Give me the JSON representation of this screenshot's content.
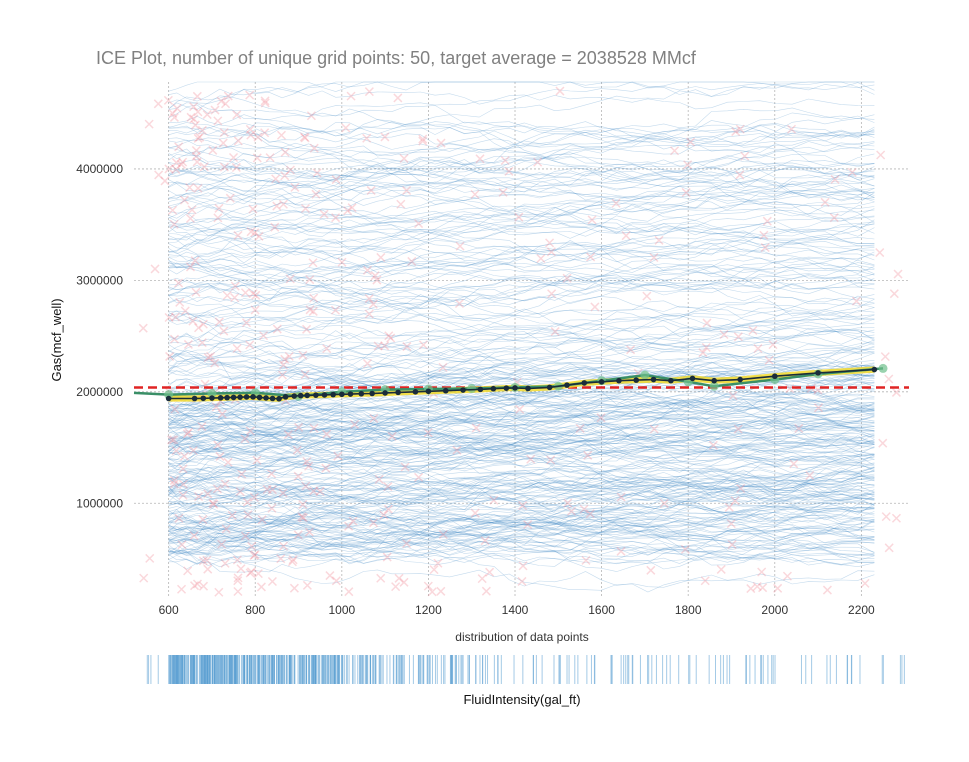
{
  "chart_data": {
    "type": "line",
    "title": "ICE Plot, number of unique grid points: 50, target average = 2038528 MMcf",
    "xlabel": "distribution of data points",
    "ylabel": "Gas(mcf_well)",
    "rug_xlabel": "FluidIntensity(gal_ft)",
    "xlim": [
      520,
      2310
    ],
    "ylim": [
      150000,
      4780000
    ],
    "x_ticks": [
      600,
      800,
      1000,
      1200,
      1400,
      1600,
      1800,
      2000,
      2200
    ],
    "y_ticks": [
      1000000,
      2000000,
      3000000,
      4000000
    ],
    "x_tick_labels": [
      "600",
      "800",
      "1000",
      "1200",
      "1400",
      "1600",
      "1800",
      "2000",
      "2200"
    ],
    "y_tick_labels": [
      "1000000",
      "2000000",
      "3000000",
      "4000000"
    ],
    "grid": true,
    "target_average": 2038528,
    "series": [
      {
        "kind": "pdp",
        "x": [
          600,
          660,
          680,
          700,
          720,
          735,
          750,
          765,
          780,
          795,
          810,
          825,
          840,
          855,
          870,
          890,
          905,
          920,
          940,
          960,
          980,
          1000,
          1020,
          1045,
          1070,
          1100,
          1130,
          1170,
          1200,
          1240,
          1280,
          1320,
          1350,
          1380,
          1400,
          1430,
          1480,
          1520,
          1560,
          1600,
          1640,
          1680,
          1720,
          1760,
          1810,
          1860,
          1920,
          2000,
          2100,
          2230
        ],
        "values": [
          1940000,
          1940000,
          1942000,
          1944000,
          1946000,
          1948000,
          1950000,
          1952000,
          1954000,
          1955000,
          1950000,
          1945000,
          1940000,
          1938000,
          1955000,
          1962000,
          1966000,
          1968000,
          1970000,
          1972000,
          1975000,
          1978000,
          1980000,
          1983000,
          1985000,
          1990000,
          1995000,
          2000000,
          2005000,
          2010000,
          2016000,
          2022000,
          2028000,
          2033000,
          2035000,
          2030000,
          2040000,
          2060000,
          2080000,
          2090000,
          2100000,
          2105000,
          2110000,
          2100000,
          2120000,
          2100000,
          2110000,
          2140000,
          2170000,
          2200000
        ]
      },
      {
        "kind": "cluster-centroid",
        "x": [
          520,
          600,
          700,
          800,
          900,
          1000,
          1100,
          1200,
          1300,
          1400,
          1500,
          1600,
          1700,
          1800,
          1860,
          2000,
          2100,
          2250
        ],
        "values": [
          1990000,
          1975000,
          1985000,
          1992000,
          1960000,
          2000000,
          2020000,
          2025000,
          2030000,
          2040000,
          2050000,
          2100000,
          2150000,
          2090000,
          2050000,
          2110000,
          2160000,
          2210000
        ]
      }
    ],
    "colors": {
      "ice_lines": "#4a90c8",
      "data_points": "#f08f9a",
      "pdp_line": "#1a2c3a",
      "pdp_band": "#f2d92c",
      "cluster_line": "#3a8f67",
      "cluster_marker": "#6fbf8c",
      "target_line": "#e02424",
      "grid": "#b5b5b5",
      "rug": "#5a9fd1",
      "title_text": "#808080",
      "tick_text": "#333333"
    }
  }
}
